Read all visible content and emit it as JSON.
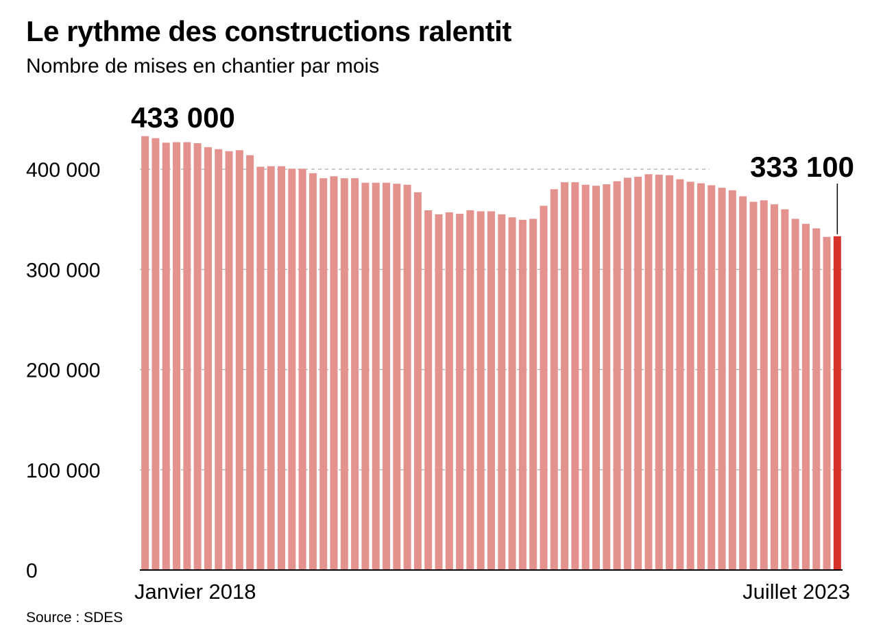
{
  "header": {
    "title": "Le rythme des constructions ralentit",
    "subtitle": "Nombre de mises en chantier par mois"
  },
  "footer": {
    "source": "Source : SDES"
  },
  "colors": {
    "bar": "#e3928d",
    "highlight": "#d6342a",
    "grid": "#aaaaaa",
    "axis": "#000000"
  },
  "chart_data": {
    "type": "bar",
    "title": "Le rythme des constructions ralentit",
    "subtitle": "Nombre de mises en chantier par mois",
    "xlabel": "",
    "ylabel": "",
    "ylim": [
      0,
      433000
    ],
    "y_ticks": [
      0,
      100000,
      200000,
      300000,
      400000
    ],
    "y_tick_labels": [
      "0",
      "100 000",
      "200 000",
      "300 000",
      "400 000"
    ],
    "x_range_labels": {
      "start": "Janvier 2018",
      "end": "Juillet 2023"
    },
    "grid": "horizontal dashed",
    "annotations": [
      {
        "text": "433 000",
        "target": "first"
      },
      {
        "text": "333 100",
        "target": "last"
      }
    ],
    "highlight": "last",
    "values": [
      433000,
      431000,
      426500,
      427000,
      427000,
      426000,
      422000,
      420000,
      418000,
      419000,
      414000,
      402500,
      403000,
      403000,
      400500,
      400500,
      396000,
      391000,
      393000,
      391000,
      391000,
      386500,
      386500,
      386500,
      385500,
      384500,
      377000,
      359000,
      355000,
      357000,
      355500,
      359000,
      358000,
      358000,
      355000,
      352000,
      349500,
      350500,
      363500,
      380000,
      387000,
      387000,
      384500,
      383500,
      385000,
      388000,
      391500,
      392500,
      395000,
      394500,
      394000,
      390000,
      387500,
      386000,
      384000,
      381500,
      379000,
      373000,
      367500,
      369000,
      365000,
      360000,
      350500,
      345500,
      341000,
      332500,
      333100
    ]
  }
}
